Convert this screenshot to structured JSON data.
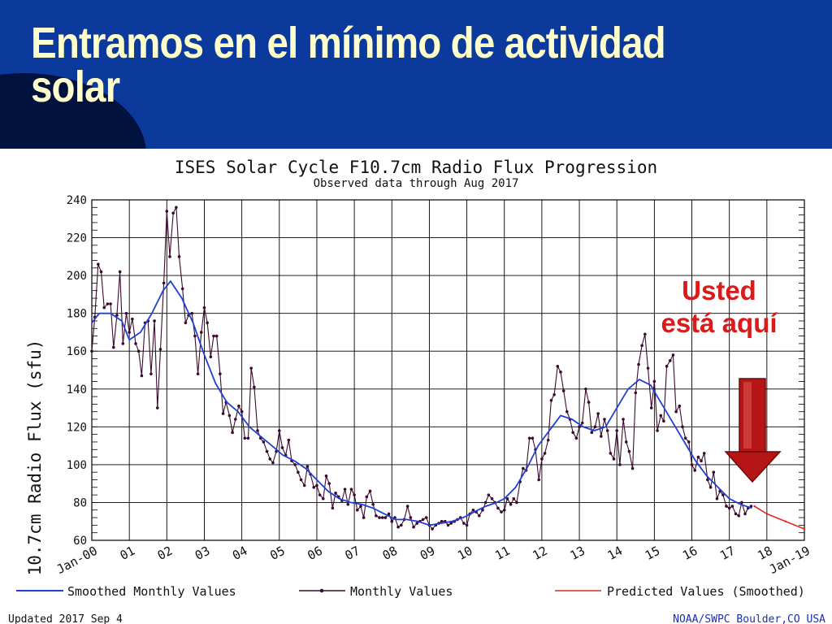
{
  "slide": {
    "title": "Entramos en el mínimo de actividad solar"
  },
  "annotation": {
    "line1": "Usted",
    "line2": "está aquí"
  },
  "chart_data": {
    "type": "line",
    "title": "ISES Solar Cycle F10.7cm Radio Flux Progression",
    "subtitle": "Observed data through Aug 2017",
    "ylabel": "10.7cm Radio Flux (sfu)",
    "xlabel": "",
    "x_unit": "year",
    "xlim": [
      2000.0,
      2019.0
    ],
    "ylim": [
      60,
      240
    ],
    "yticks": [
      60,
      80,
      100,
      120,
      140,
      160,
      180,
      200,
      220,
      240
    ],
    "xtick_labels": [
      "Jan-00",
      "01",
      "02",
      "03",
      "04",
      "05",
      "06",
      "07",
      "08",
      "09",
      "10",
      "11",
      "12",
      "13",
      "14",
      "15",
      "16",
      "17",
      "18",
      "Jan-19"
    ],
    "grid": true,
    "colors": {
      "smoothed": "#1f3fd6",
      "monthly": "#3a0b2e",
      "predicted": "#e0281e",
      "arrow": "#c31a1a"
    },
    "series": [
      {
        "name": "Smoothed Monthly Values",
        "points": [
          [
            2000.0,
            175
          ],
          [
            2000.2,
            180
          ],
          [
            2000.5,
            180
          ],
          [
            2000.8,
            176
          ],
          [
            2001.0,
            166
          ],
          [
            2001.3,
            170
          ],
          [
            2001.6,
            180
          ],
          [
            2001.9,
            192
          ],
          [
            2002.1,
            197
          ],
          [
            2002.4,
            188
          ],
          [
            2002.7,
            175
          ],
          [
            2003.0,
            158
          ],
          [
            2003.3,
            143
          ],
          [
            2003.6,
            133
          ],
          [
            2003.9,
            128
          ],
          [
            2004.2,
            120
          ],
          [
            2004.5,
            115
          ],
          [
            2004.8,
            110
          ],
          [
            2005.1,
            105
          ],
          [
            2005.4,
            102
          ],
          [
            2005.7,
            98
          ],
          [
            2006.0,
            92
          ],
          [
            2006.3,
            86
          ],
          [
            2006.6,
            82
          ],
          [
            2006.9,
            80
          ],
          [
            2007.2,
            79
          ],
          [
            2007.5,
            77
          ],
          [
            2007.8,
            74
          ],
          [
            2008.1,
            71
          ],
          [
            2008.4,
            71
          ],
          [
            2008.7,
            70
          ],
          [
            2009.0,
            68
          ],
          [
            2009.3,
            69
          ],
          [
            2009.6,
            70
          ],
          [
            2009.9,
            72
          ],
          [
            2010.2,
            75
          ],
          [
            2010.5,
            78
          ],
          [
            2010.8,
            80
          ],
          [
            2011.0,
            82
          ],
          [
            2011.3,
            88
          ],
          [
            2011.6,
            98
          ],
          [
            2011.9,
            110
          ],
          [
            2012.2,
            118
          ],
          [
            2012.5,
            126
          ],
          [
            2012.8,
            124
          ],
          [
            2013.1,
            120
          ],
          [
            2013.4,
            118
          ],
          [
            2013.7,
            120
          ],
          [
            2014.0,
            130
          ],
          [
            2014.3,
            140
          ],
          [
            2014.6,
            145
          ],
          [
            2014.9,
            142
          ],
          [
            2015.2,
            132
          ],
          [
            2015.5,
            122
          ],
          [
            2015.8,
            112
          ],
          [
            2016.1,
            102
          ],
          [
            2016.4,
            94
          ],
          [
            2016.7,
            88
          ],
          [
            2017.0,
            82
          ],
          [
            2017.3,
            79
          ],
          [
            2017.6,
            77
          ]
        ]
      },
      {
        "name": "Monthly Values",
        "points": [
          [
            2000.0,
            160
          ],
          [
            2000.08,
            178
          ],
          [
            2000.17,
            206
          ],
          [
            2000.25,
            202
          ],
          [
            2000.33,
            183
          ],
          [
            2000.42,
            185
          ],
          [
            2000.5,
            185
          ],
          [
            2000.58,
            162
          ],
          [
            2000.67,
            179
          ],
          [
            2000.75,
            202
          ],
          [
            2000.83,
            164
          ],
          [
            2000.92,
            180
          ],
          [
            2001.0,
            170
          ],
          [
            2001.08,
            177
          ],
          [
            2001.17,
            164
          ],
          [
            2001.25,
            160
          ],
          [
            2001.33,
            147
          ],
          [
            2001.42,
            175
          ],
          [
            2001.5,
            176
          ],
          [
            2001.58,
            148
          ],
          [
            2001.67,
            176
          ],
          [
            2001.75,
            130
          ],
          [
            2001.83,
            161
          ],
          [
            2001.92,
            196
          ],
          [
            2002.0,
            234
          ],
          [
            2002.08,
            210
          ],
          [
            2002.17,
            233
          ],
          [
            2002.25,
            236
          ],
          [
            2002.33,
            210
          ],
          [
            2002.42,
            193
          ],
          [
            2002.5,
            175
          ],
          [
            2002.58,
            179
          ],
          [
            2002.67,
            180
          ],
          [
            2002.75,
            168
          ],
          [
            2002.83,
            148
          ],
          [
            2002.92,
            170
          ],
          [
            2003.0,
            183
          ],
          [
            2003.08,
            175
          ],
          [
            2003.17,
            157
          ],
          [
            2003.25,
            168
          ],
          [
            2003.33,
            168
          ],
          [
            2003.42,
            148
          ],
          [
            2003.5,
            127
          ],
          [
            2003.58,
            133
          ],
          [
            2003.67,
            126
          ],
          [
            2003.75,
            117
          ],
          [
            2003.83,
            124
          ],
          [
            2003.92,
            131
          ],
          [
            2004.0,
            128
          ],
          [
            2004.08,
            114
          ],
          [
            2004.17,
            114
          ],
          [
            2004.25,
            151
          ],
          [
            2004.33,
            141
          ],
          [
            2004.42,
            118
          ],
          [
            2004.5,
            114
          ],
          [
            2004.58,
            112
          ],
          [
            2004.67,
            107
          ],
          [
            2004.75,
            103
          ],
          [
            2004.83,
            101
          ],
          [
            2004.92,
            107
          ],
          [
            2005.0,
            118
          ],
          [
            2005.08,
            109
          ],
          [
            2005.17,
            105
          ],
          [
            2005.25,
            113
          ],
          [
            2005.33,
            102
          ],
          [
            2005.42,
            100
          ],
          [
            2005.5,
            96
          ],
          [
            2005.58,
            92
          ],
          [
            2005.67,
            89
          ],
          [
            2005.75,
            99
          ],
          [
            2005.83,
            95
          ],
          [
            2005.92,
            88
          ],
          [
            2006.0,
            89
          ],
          [
            2006.08,
            84
          ],
          [
            2006.17,
            82
          ],
          [
            2006.25,
            94
          ],
          [
            2006.33,
            90
          ],
          [
            2006.42,
            77
          ],
          [
            2006.5,
            85
          ],
          [
            2006.58,
            83
          ],
          [
            2006.67,
            81
          ],
          [
            2006.75,
            87
          ],
          [
            2006.83,
            79
          ],
          [
            2006.92,
            87
          ],
          [
            2007.0,
            84
          ],
          [
            2007.08,
            76
          ],
          [
            2007.17,
            78
          ],
          [
            2007.25,
            72
          ],
          [
            2007.33,
            83
          ],
          [
            2007.42,
            86
          ],
          [
            2007.5,
            79
          ],
          [
            2007.58,
            73
          ],
          [
            2007.67,
            72
          ],
          [
            2007.75,
            72
          ],
          [
            2007.83,
            72
          ],
          [
            2007.92,
            74
          ],
          [
            2008.0,
            70
          ],
          [
            2008.08,
            72
          ],
          [
            2008.17,
            67
          ],
          [
            2008.25,
            68
          ],
          [
            2008.33,
            71
          ],
          [
            2008.42,
            78
          ],
          [
            2008.5,
            72
          ],
          [
            2008.58,
            67
          ],
          [
            2008.67,
            69
          ],
          [
            2008.75,
            70
          ],
          [
            2008.83,
            71
          ],
          [
            2008.92,
            72
          ],
          [
            2009.0,
            68
          ],
          [
            2009.08,
            66
          ],
          [
            2009.17,
            68
          ],
          [
            2009.25,
            69
          ],
          [
            2009.33,
            70
          ],
          [
            2009.42,
            70
          ],
          [
            2009.5,
            68
          ],
          [
            2009.58,
            69
          ],
          [
            2009.67,
            70
          ],
          [
            2009.75,
            71
          ],
          [
            2009.83,
            72
          ],
          [
            2009.92,
            69
          ],
          [
            2010.0,
            68
          ],
          [
            2010.08,
            74
          ],
          [
            2010.17,
            76
          ],
          [
            2010.25,
            75
          ],
          [
            2010.33,
            73
          ],
          [
            2010.42,
            76
          ],
          [
            2010.5,
            80
          ],
          [
            2010.58,
            84
          ],
          [
            2010.67,
            82
          ],
          [
            2010.75,
            80
          ],
          [
            2010.83,
            77
          ],
          [
            2010.92,
            75
          ],
          [
            2011.0,
            76
          ],
          [
            2011.08,
            82
          ],
          [
            2011.17,
            79
          ],
          [
            2011.25,
            82
          ],
          [
            2011.33,
            80
          ],
          [
            2011.42,
            91
          ],
          [
            2011.5,
            98
          ],
          [
            2011.58,
            97
          ],
          [
            2011.67,
            114
          ],
          [
            2011.75,
            114
          ],
          [
            2011.83,
            108
          ],
          [
            2011.92,
            92
          ],
          [
            2012.0,
            103
          ],
          [
            2012.08,
            106
          ],
          [
            2012.17,
            113
          ],
          [
            2012.25,
            134
          ],
          [
            2012.33,
            137
          ],
          [
            2012.42,
            152
          ],
          [
            2012.5,
            149
          ],
          [
            2012.58,
            139
          ],
          [
            2012.67,
            128
          ],
          [
            2012.75,
            124
          ],
          [
            2012.83,
            117
          ],
          [
            2012.92,
            114
          ],
          [
            2013.0,
            120
          ],
          [
            2013.08,
            122
          ],
          [
            2013.17,
            140
          ],
          [
            2013.25,
            133
          ],
          [
            2013.33,
            117
          ],
          [
            2013.42,
            120
          ],
          [
            2013.5,
            127
          ],
          [
            2013.58,
            115
          ],
          [
            2013.67,
            124
          ],
          [
            2013.75,
            118
          ],
          [
            2013.83,
            106
          ],
          [
            2013.92,
            103
          ],
          [
            2014.0,
            118
          ],
          [
            2014.08,
            100
          ],
          [
            2014.17,
            124
          ],
          [
            2014.25,
            112
          ],
          [
            2014.33,
            107
          ],
          [
            2014.42,
            98
          ],
          [
            2014.5,
            138
          ],
          [
            2014.58,
            153
          ],
          [
            2014.67,
            163
          ],
          [
            2014.75,
            169
          ],
          [
            2014.83,
            151
          ],
          [
            2014.92,
            130
          ],
          [
            2015.0,
            144
          ],
          [
            2015.08,
            118
          ],
          [
            2015.17,
            126
          ],
          [
            2015.25,
            123
          ],
          [
            2015.33,
            152
          ],
          [
            2015.42,
            155
          ],
          [
            2015.5,
            158
          ],
          [
            2015.58,
            128
          ],
          [
            2015.67,
            131
          ],
          [
            2015.75,
            120
          ],
          [
            2015.83,
            114
          ],
          [
            2015.92,
            112
          ],
          [
            2016.0,
            100
          ],
          [
            2016.08,
            97
          ],
          [
            2016.17,
            104
          ],
          [
            2016.25,
            102
          ],
          [
            2016.33,
            106
          ],
          [
            2016.42,
            92
          ],
          [
            2016.5,
            88
          ],
          [
            2016.58,
            96
          ],
          [
            2016.67,
            82
          ],
          [
            2016.75,
            86
          ],
          [
            2016.83,
            84
          ],
          [
            2016.92,
            78
          ],
          [
            2017.0,
            77
          ],
          [
            2017.08,
            78
          ],
          [
            2017.17,
            74
          ],
          [
            2017.25,
            73
          ],
          [
            2017.33,
            80
          ],
          [
            2017.42,
            74
          ],
          [
            2017.5,
            77
          ],
          [
            2017.58,
            78
          ]
        ]
      },
      {
        "name": "Predicted Values (Smoothed)",
        "points": [
          [
            2017.67,
            78
          ],
          [
            2018.0,
            74
          ],
          [
            2018.5,
            70
          ],
          [
            2019.0,
            66
          ]
        ]
      }
    ],
    "legend_position": "bottom"
  },
  "footer": {
    "updated": "Updated 2017 Sep 4",
    "credit": "NOAA/SWPC Boulder,CO USA"
  }
}
